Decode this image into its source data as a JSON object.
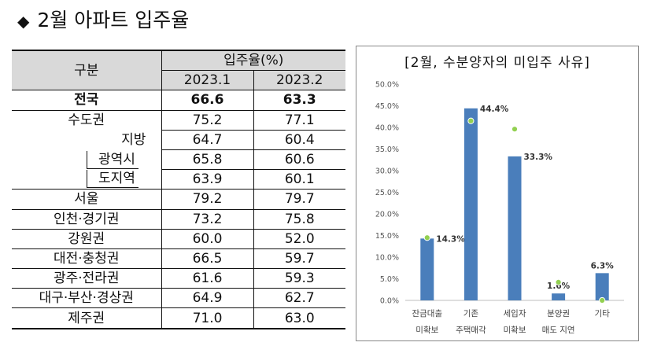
{
  "page": {
    "title": "2월 아파트 입주율",
    "title_icon": "diamond-icon"
  },
  "table": {
    "header": {
      "category": "구분",
      "group": "입주율(%)",
      "col1": "2023.1",
      "col2": "2023.2"
    },
    "rows": [
      {
        "label": "전국",
        "v1": "66.6",
        "v2": "63.3"
      },
      {
        "label": "수도권",
        "v1": "75.2",
        "v2": "77.1"
      },
      {
        "label": "지방",
        "v1": "64.7",
        "v2": "60.4"
      },
      {
        "label": "광역시",
        "v1": "65.8",
        "v2": "60.6"
      },
      {
        "label": "도지역",
        "v1": "63.9",
        "v2": "60.1"
      },
      {
        "label": "서울",
        "v1": "79.2",
        "v2": "79.7"
      },
      {
        "label": "인천·경기권",
        "v1": "73.2",
        "v2": "75.8"
      },
      {
        "label": "강원권",
        "v1": "60.0",
        "v2": "52.0"
      },
      {
        "label": "대전·충청권",
        "v1": "66.5",
        "v2": "59.7"
      },
      {
        "label": "광주·전라권",
        "v1": "61.6",
        "v2": "59.3"
      },
      {
        "label": "대구·부산·경상권",
        "v1": "64.9",
        "v2": "62.7"
      },
      {
        "label": "제주권",
        "v1": "71.0",
        "v2": "63.0"
      }
    ]
  },
  "chart_data": {
    "type": "bar",
    "title": "[2월, 수분양자의 미입주 사유]",
    "categories": [
      [
        "잔금대출",
        "미확보"
      ],
      [
        "기존",
        "주택매각"
      ],
      [
        "세입자",
        "미확보"
      ],
      [
        "분양권",
        "매도 지연"
      ],
      [
        "기타"
      ]
    ],
    "series": [
      {
        "values": [
          14.3,
          44.4,
          33.3,
          1.6,
          6.3
        ],
        "labels": [
          "14.3%",
          "44.4%",
          "33.3%",
          "1.6%",
          "6.3%"
        ],
        "marker": "bar"
      },
      {
        "values": [
          14.5,
          41.5,
          39.6,
          4.2,
          0.0
        ],
        "marker": "dot"
      }
    ],
    "ylim": [
      0,
      50
    ],
    "yticks": [
      "0.0%",
      "5.0%",
      "10.0%",
      "15.0%",
      "20.0%",
      "25.0%",
      "30.0%",
      "35.0%",
      "40.0%",
      "45.0%",
      "50.0%"
    ],
    "grid": false,
    "colors": {
      "bar": "#4a7ebb",
      "dot": "#92d050"
    }
  }
}
